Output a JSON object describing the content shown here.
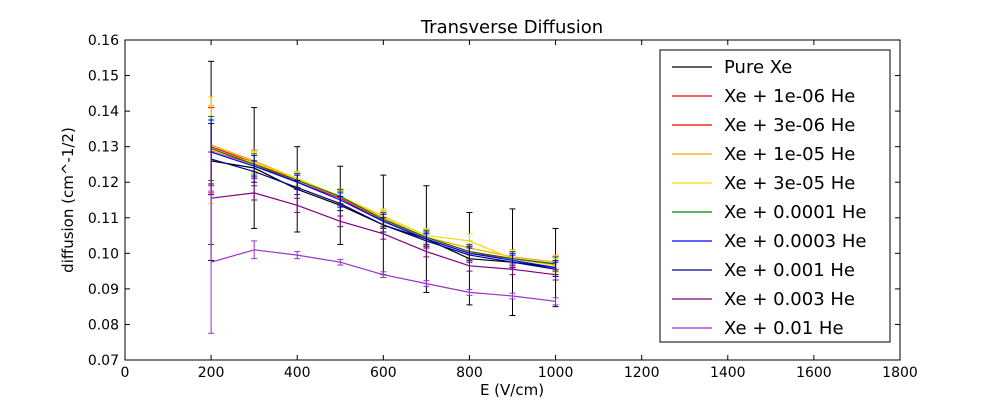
{
  "chart_data": {
    "type": "line",
    "title": "Transverse Diffusion",
    "xlabel": "E (V/cm)",
    "ylabel": "diffusion (cm^-1/2)",
    "xlim": [
      0,
      1800
    ],
    "ylim": [
      0.07,
      0.16
    ],
    "xticks": [
      0,
      200,
      400,
      600,
      800,
      1000,
      1200,
      1400,
      1600,
      1800
    ],
    "yticks": [
      0.07,
      0.08,
      0.09,
      0.1,
      0.11,
      0.12,
      0.13,
      0.14,
      0.15,
      0.16
    ],
    "xtick_labels": [
      "0",
      "200",
      "400",
      "600",
      "800",
      "1000",
      "1200",
      "1400",
      "1600",
      "1800"
    ],
    "ytick_labels": [
      "0.07",
      "0.08",
      "0.09",
      "0.10",
      "0.11",
      "0.12",
      "0.13",
      "0.14",
      "0.15",
      "0.16"
    ],
    "grid": false,
    "legend_position": "right",
    "x": [
      200,
      300,
      400,
      500,
      600,
      700,
      800,
      900,
      1000
    ],
    "series": [
      {
        "name": "Pure Xe",
        "color": "#000000",
        "values": [
          0.126,
          0.124,
          0.118,
          0.1135,
          0.108,
          0.104,
          0.0985,
          0.0975,
          0.096
        ],
        "errors": [
          0.028,
          0.017,
          0.012,
          0.011,
          0.014,
          0.015,
          0.013,
          0.015,
          0.011
        ]
      },
      {
        "name": "Xe + 1e-06 He",
        "color": "#ff0000",
        "values": [
          0.129,
          0.125,
          0.12,
          0.1155,
          0.109,
          0.104,
          0.1,
          0.0985,
          0.097
        ],
        "errors": [
          0.012,
          0.004,
          0.002,
          0.002,
          0.002,
          0.002,
          0.002,
          0.002,
          0.002
        ]
      },
      {
        "name": "Xe + 3e-06 He",
        "color": "#ff0000",
        "values": [
          0.13,
          0.1255,
          0.1205,
          0.116,
          0.1095,
          0.1045,
          0.1005,
          0.0985,
          0.097
        ],
        "errors": [
          0.011,
          0.003,
          0.002,
          0.002,
          0.002,
          0.002,
          0.002,
          0.002,
          0.002
        ]
      },
      {
        "name": "Xe + 1e-05 He",
        "color": "#ffa500",
        "values": [
          0.1305,
          0.126,
          0.121,
          0.116,
          0.11,
          0.1045,
          0.1015,
          0.099,
          0.0975
        ],
        "errors": [
          0.011,
          0.003,
          0.002,
          0.002,
          0.002,
          0.002,
          0.002,
          0.002,
          0.002
        ]
      },
      {
        "name": "Xe + 3e-05 He",
        "color": "#ffd700",
        "values": [
          0.129,
          0.1255,
          0.121,
          0.116,
          0.1105,
          0.105,
          0.1035,
          0.0985,
          0.0965
        ],
        "errors": [
          0.015,
          0.003,
          0.002,
          0.002,
          0.002,
          0.002,
          0.002,
          0.002,
          0.002
        ]
      },
      {
        "name": "Xe + 0.0001 He",
        "color": "#008000",
        "values": [
          0.1295,
          0.125,
          0.1205,
          0.116,
          0.1095,
          0.1045,
          0.1005,
          0.0985,
          0.097
        ],
        "errors": [
          0.009,
          0.003,
          0.002,
          0.002,
          0.002,
          0.002,
          0.002,
          0.002,
          0.002
        ]
      },
      {
        "name": "Xe + 0.0003 He",
        "color": "#0000ff",
        "values": [
          0.1285,
          0.1245,
          0.12,
          0.115,
          0.109,
          0.104,
          0.1,
          0.098,
          0.096
        ],
        "errors": [
          0.009,
          0.003,
          0.002,
          0.002,
          0.002,
          0.002,
          0.002,
          0.002,
          0.002
        ]
      },
      {
        "name": "Xe + 0.001 He",
        "color": "#00008b",
        "values": [
          0.1265,
          0.123,
          0.1185,
          0.114,
          0.108,
          0.1035,
          0.0995,
          0.0975,
          0.0955
        ],
        "errors": [
          0.01,
          0.003,
          0.002,
          0.002,
          0.002,
          0.002,
          0.002,
          0.002,
          0.002
        ]
      },
      {
        "name": "Xe + 0.003 He",
        "color": "#800080",
        "values": [
          0.1155,
          0.117,
          0.1135,
          0.109,
          0.1055,
          0.1005,
          0.0965,
          0.0955,
          0.094
        ],
        "errors": [
          0.013,
          0.002,
          0.002,
          0.0015,
          0.0015,
          0.0015,
          0.0015,
          0.0015,
          0.0015
        ]
      },
      {
        "name": "Xe + 0.01 He",
        "color": "#9932cc",
        "values": [
          0.0975,
          0.101,
          0.0995,
          0.0975,
          0.094,
          0.0915,
          0.089,
          0.088,
          0.0865
        ],
        "errors": [
          0.02,
          0.0025,
          0.001,
          0.0008,
          0.0008,
          0.0008,
          0.0008,
          0.0008,
          0.001
        ]
      }
    ]
  }
}
